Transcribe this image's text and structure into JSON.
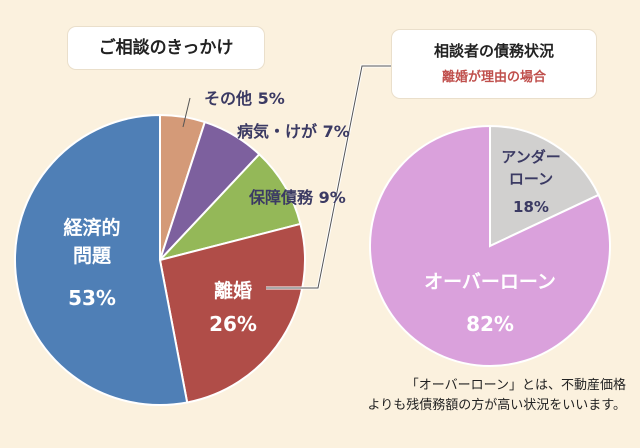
{
  "chart_data": [
    {
      "type": "pie",
      "title": "ご相談のきっかけ",
      "unit": "%",
      "slices": [
        {
          "name": "その他",
          "value": 5,
          "color": "#d49a78"
        },
        {
          "name": "病気・けが",
          "value": 7,
          "color": "#7d609e"
        },
        {
          "name": "保障債務",
          "value": 9,
          "color": "#94b858"
        },
        {
          "name": "離婚",
          "value": 26,
          "color": "#b04d48"
        },
        {
          "name": "経済的問題",
          "value": 53,
          "color": "#4f7fb6"
        }
      ],
      "labels": {
        "other": "その他 5%",
        "illness": "病気・けが 7%",
        "guarantee": "保障債務 9%",
        "divorce_name": "離婚",
        "divorce_value": "26%",
        "economic_line1": "経済的",
        "economic_line2": "問題",
        "economic_value": "53%"
      }
    },
    {
      "type": "pie",
      "title": "相談者の債務状況",
      "subtitle": "離婚が理由の場合",
      "unit": "%",
      "slices": [
        {
          "name": "アンダーローン",
          "value": 18,
          "color": "#d1d0cf"
        },
        {
          "name": "オーバーローン",
          "value": 82,
          "color": "#daa1dc"
        }
      ],
      "labels": {
        "under_line1": "アンダー",
        "under_line2": "ローン",
        "under_value": "18%",
        "over_name": "オーバーローン",
        "over_value": "82%"
      }
    }
  ],
  "note": {
    "line1": "「オーバーローン」とは、不動産価格",
    "line2": "よりも残債務額の方が高い状況をいいます。"
  }
}
